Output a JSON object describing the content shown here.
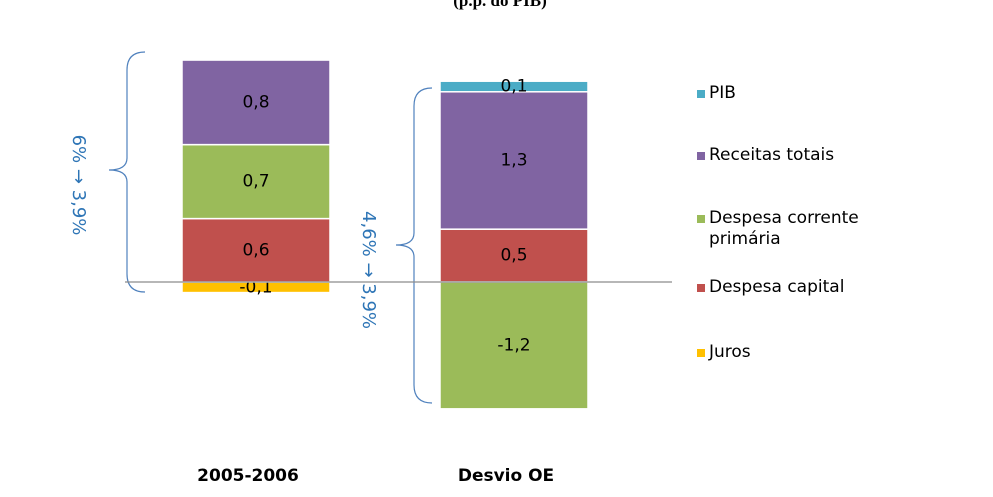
{
  "chart_data": {
    "type": "stacked_bar",
    "title": "(p.p. do PIB)",
    "categories": [
      "2005-2006",
      "Desvio OE"
    ],
    "series": [
      {
        "name": "PIB",
        "color": "#4bacc6",
        "values": [
          null,
          0.1
        ],
        "value_labels": [
          null,
          "0,1"
        ]
      },
      {
        "name": "Receitas totais",
        "color": "#8064a2",
        "values": [
          0.8,
          1.3
        ],
        "value_labels": [
          "0,8",
          "1,3"
        ]
      },
      {
        "name": "Despesa corrente primária",
        "color": "#9bbb59",
        "values": [
          0.7,
          -1.2
        ],
        "value_labels": [
          "0,7",
          "-1,2"
        ]
      },
      {
        "name": "Despesa capital",
        "color": "#c0504d",
        "values": [
          0.6,
          0.5
        ],
        "value_labels": [
          "0,6",
          "0,5"
        ]
      },
      {
        "name": "Juros",
        "color": "#ffc000",
        "values": [
          -0.1,
          null
        ],
        "value_labels": [
          "-0,1",
          null
        ]
      }
    ],
    "annotations": [
      "6% → 3,9%",
      "4,6% → 3,9%"
    ],
    "ylim": [
      -1.3,
      2.2
    ],
    "legend": "right"
  }
}
